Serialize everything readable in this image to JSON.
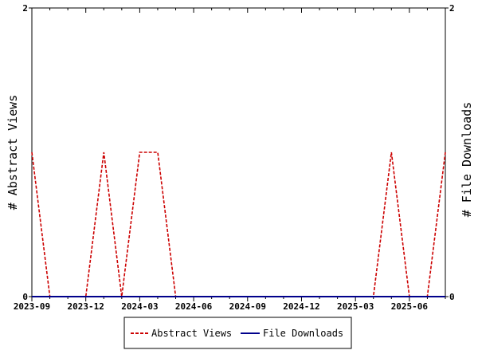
{
  "chart_data": {
    "type": "line",
    "x_axis": {
      "type": "date",
      "tick_labels": [
        "2023-09",
        "2023-12",
        "2024-03",
        "2024-06",
        "2024-09",
        "2024-12",
        "2025-03",
        "2025-06"
      ],
      "range": [
        "2023-09",
        "2025-08"
      ]
    },
    "y_left": {
      "label": "# Abstract Views",
      "ticks": [
        "0",
        "2"
      ],
      "ylim": [
        0,
        2
      ]
    },
    "y_right": {
      "label": "# File Downloads",
      "ticks": [
        "0",
        "2"
      ],
      "ylim": [
        0,
        2
      ]
    },
    "series": [
      {
        "name": "Abstract Views",
        "color": "#cc0000",
        "style": "dashed",
        "axis": "left",
        "x": [
          "2023-09",
          "2023-10",
          "2023-11",
          "2023-12",
          "2024-01",
          "2024-02",
          "2024-03",
          "2024-04",
          "2024-05",
          "2024-06",
          "2024-07",
          "2024-08",
          "2024-09",
          "2024-10",
          "2024-11",
          "2024-12",
          "2025-01",
          "2025-02",
          "2025-03",
          "2025-04",
          "2025-05",
          "2025-06",
          "2025-07",
          "2025-08"
        ],
        "values": [
          1,
          0,
          0,
          0,
          1,
          0,
          1,
          1,
          0,
          0,
          0,
          0,
          0,
          0,
          0,
          0,
          0,
          0,
          0,
          0,
          1,
          0,
          0,
          1
        ]
      },
      {
        "name": "File Downloads",
        "color": "#00008b",
        "style": "solid",
        "axis": "right",
        "x": [
          "2023-09",
          "2023-10",
          "2023-11",
          "2023-12",
          "2024-01",
          "2024-02",
          "2024-03",
          "2024-04",
          "2024-05",
          "2024-06",
          "2024-07",
          "2024-08",
          "2024-09",
          "2024-10",
          "2024-11",
          "2024-12",
          "2025-01",
          "2025-02",
          "2025-03",
          "2025-04",
          "2025-05",
          "2025-06",
          "2025-07",
          "2025-08"
        ],
        "values": [
          0,
          0,
          0,
          0,
          0,
          0,
          0,
          0,
          0,
          0,
          0,
          0,
          0,
          0,
          0,
          0,
          0,
          0,
          0,
          0,
          0,
          0,
          0,
          0
        ]
      }
    ],
    "legend": {
      "position": "bottom",
      "entries": [
        "Abstract Views",
        "File Downloads"
      ]
    },
    "grid": false
  }
}
